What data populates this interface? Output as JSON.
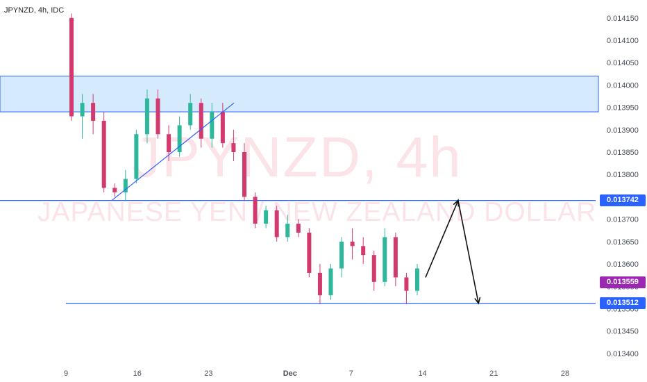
{
  "header": {
    "symbol_label": "JPYNZD, 4h, IDC"
  },
  "watermark": {
    "line1": "JPYNZD, 4h",
    "line2": "JAPANESE YEN / NEW ZEALAND DOLLAR"
  },
  "chart_data": {
    "type": "candlestick",
    "symbol": "JPYNZD",
    "timeframe": "4h",
    "source": "IDC",
    "ylim": [
      0.01338,
      0.014175
    ],
    "y_ticks": [
      "0.014150",
      "0.014100",
      "0.014050",
      "0.014000",
      "0.013950",
      "0.013900",
      "0.013850",
      "0.013800",
      "0.013750",
      "0.013700",
      "0.013650",
      "0.013600",
      "0.013550",
      "0.013500",
      "0.013450",
      "0.013400"
    ],
    "x_ticks": [
      "9",
      "16",
      "23",
      "Dec",
      "7",
      "14",
      "21",
      "28"
    ],
    "x_tick_day_index": [
      0,
      7,
      14,
      22,
      28,
      35,
      42,
      49
    ],
    "candles": [
      {
        "o": 0.01415,
        "h": 0.01416,
        "l": 0.01392,
        "c": 0.01393
      },
      {
        "o": 0.01393,
        "h": 0.01398,
        "l": 0.01388,
        "c": 0.01396
      },
      {
        "o": 0.01396,
        "h": 0.01398,
        "l": 0.01389,
        "c": 0.01392
      },
      {
        "o": 0.01392,
        "h": 0.01394,
        "l": 0.01376,
        "c": 0.01377
      },
      {
        "o": 0.01377,
        "h": 0.01378,
        "l": 0.01375,
        "c": 0.01376
      },
      {
        "o": 0.01376,
        "h": 0.01381,
        "l": 0.01374,
        "c": 0.01379
      },
      {
        "o": 0.01379,
        "h": 0.0139,
        "l": 0.01378,
        "c": 0.01389
      },
      {
        "o": 0.01389,
        "h": 0.01399,
        "l": 0.01387,
        "c": 0.01397
      },
      {
        "o": 0.01397,
        "h": 0.01399,
        "l": 0.01388,
        "c": 0.01389
      },
      {
        "o": 0.01389,
        "h": 0.01391,
        "l": 0.01383,
        "c": 0.01385
      },
      {
        "o": 0.01385,
        "h": 0.01393,
        "l": 0.01384,
        "c": 0.01391
      },
      {
        "o": 0.01391,
        "h": 0.01398,
        "l": 0.0139,
        "c": 0.01396
      },
      {
        "o": 0.01396,
        "h": 0.01397,
        "l": 0.01386,
        "c": 0.01388
      },
      {
        "o": 0.01388,
        "h": 0.01396,
        "l": 0.01386,
        "c": 0.01394
      },
      {
        "o": 0.01394,
        "h": 0.01396,
        "l": 0.01386,
        "c": 0.01387
      },
      {
        "o": 0.01387,
        "h": 0.0139,
        "l": 0.01383,
        "c": 0.01385
      },
      {
        "o": 0.01385,
        "h": 0.01387,
        "l": 0.01374,
        "c": 0.01375
      },
      {
        "o": 0.01375,
        "h": 0.01376,
        "l": 0.01368,
        "c": 0.01369
      },
      {
        "o": 0.01369,
        "h": 0.01373,
        "l": 0.01368,
        "c": 0.01372
      },
      {
        "o": 0.01372,
        "h": 0.01373,
        "l": 0.01365,
        "c": 0.01366
      },
      {
        "o": 0.01366,
        "h": 0.01371,
        "l": 0.01365,
        "c": 0.01369
      },
      {
        "o": 0.01369,
        "h": 0.0137,
        "l": 0.01366,
        "c": 0.01367
      },
      {
        "o": 0.01367,
        "h": 0.01368,
        "l": 0.01357,
        "c": 0.01358
      },
      {
        "o": 0.01358,
        "h": 0.0136,
        "l": 0.01351,
        "c": 0.01353
      },
      {
        "o": 0.01353,
        "h": 0.0136,
        "l": 0.01352,
        "c": 0.01359
      },
      {
        "o": 0.01359,
        "h": 0.01366,
        "l": 0.01357,
        "c": 0.01365
      },
      {
        "o": 0.01365,
        "h": 0.01368,
        "l": 0.01361,
        "c": 0.01364
      },
      {
        "o": 0.01364,
        "h": 0.01366,
        "l": 0.0136,
        "c": 0.01362
      },
      {
        "o": 0.01362,
        "h": 0.01363,
        "l": 0.01354,
        "c": 0.01356
      },
      {
        "o": 0.01356,
        "h": 0.01368,
        "l": 0.01355,
        "c": 0.01366
      },
      {
        "o": 0.01366,
        "h": 0.01367,
        "l": 0.01355,
        "c": 0.01357
      },
      {
        "o": 0.01357,
        "h": 0.01358,
        "l": 0.01351,
        "c": 0.01354
      },
      {
        "o": 0.01354,
        "h": 0.0136,
        "l": 0.01353,
        "c": 0.01359
      }
    ],
    "annotations": {
      "resistance_zone": [
        0.01394,
        0.01402
      ],
      "horizontal_levels": [
        0.013742,
        0.013512
      ],
      "last_price": 0.013559,
      "trendline": {
        "from": {
          "day": 4.5,
          "price": 0.013742
        },
        "to": {
          "day": 16.5,
          "price": 0.01396
        }
      },
      "projection": [
        {
          "day": 35.3,
          "price": 0.01357
        },
        {
          "day": 38.5,
          "price": 0.013742
        },
        {
          "day": 40.5,
          "price": 0.013512
        }
      ]
    },
    "price_tags": [
      {
        "label": "0.013742",
        "value": 0.013742,
        "color": "#2962ff"
      },
      {
        "label": "0.013559",
        "value": 0.013559,
        "color": "#9c27b0"
      },
      {
        "label": "0.013512",
        "value": 0.013512,
        "color": "#2962ff"
      }
    ]
  }
}
